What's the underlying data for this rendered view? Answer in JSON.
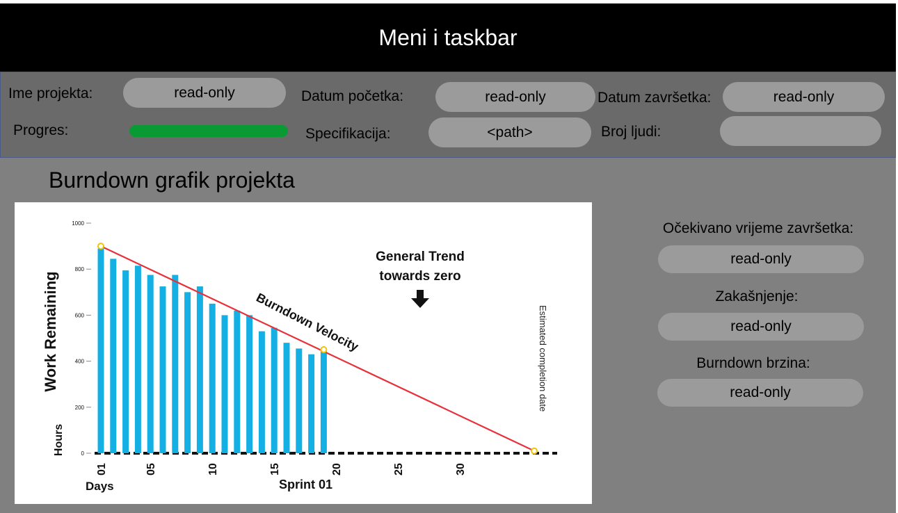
{
  "header": {
    "title": "Meni i taskbar"
  },
  "info": {
    "project_name_label": "Ime projekta:",
    "project_name_value": "read-only",
    "start_date_label": "Datum početka:",
    "start_date_value": "read-only",
    "end_date_label": "Datum završetka:",
    "end_date_value": "read-only",
    "progress_label": "Progres:",
    "progress_value": 1.0,
    "spec_label": "Specifikacija:",
    "spec_value": "<path>",
    "people_label": "Broj ljudi:",
    "people_value": ""
  },
  "main": {
    "title": "Burndown grafik  projekta",
    "expected_label": "Očekivano vrijeme završetka:",
    "expected_value": "read-only",
    "delay_label": "Zakašnjenje:",
    "delay_value": "read-only",
    "velocity_label": "Burndown brzina:",
    "velocity_value": "read-only"
  },
  "chart_data": {
    "type": "bar",
    "ylabel": "Work Remaining",
    "yunit": "Hours",
    "xlabel_left": "Days",
    "xlabel_right": "Sprint 01",
    "ylim": [
      0,
      1000
    ],
    "yticks": [
      0,
      200,
      400,
      600,
      800,
      1000
    ],
    "xticks": [
      "01",
      "05",
      "10",
      "15",
      "20",
      "25",
      "30"
    ],
    "x": [
      1,
      2,
      3,
      4,
      5,
      6,
      7,
      8,
      9,
      10,
      11,
      12,
      13,
      14,
      15,
      16,
      17,
      18,
      19
    ],
    "values": [
      890,
      845,
      795,
      815,
      775,
      725,
      775,
      700,
      725,
      650,
      600,
      620,
      600,
      530,
      545,
      480,
      455,
      430,
      450
    ],
    "trend_line": {
      "name": "Burndown Velocity",
      "points": [
        [
          1,
          900
        ],
        [
          19,
          450
        ],
        [
          36,
          10
        ]
      ],
      "color": "#e8303a"
    },
    "annotation": "General Trend\ntowards zero",
    "vertical_label": "Estimated completion date",
    "bar_color": "#14b0e3"
  }
}
